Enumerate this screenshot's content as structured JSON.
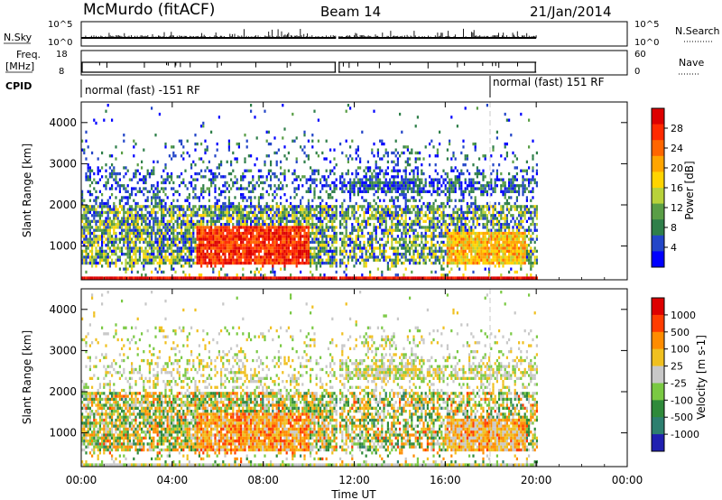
{
  "header": {
    "title": "McMurdo (fitACF)",
    "beam": "Beam 14",
    "date": "21/Jan/2014"
  },
  "strips": {
    "noise": {
      "left_label": "N.Sky",
      "right_label": "N.Search",
      "left_ticks": [
        "10^5",
        "10^0"
      ],
      "right_ticks": [
        "10^5",
        "10^0"
      ]
    },
    "freq": {
      "left_label": "Freq.",
      "left_unit": "[MHz]",
      "right_label": "Nave",
      "left_ticks": [
        "18",
        "8"
      ],
      "right_ticks": [
        "60",
        "0"
      ]
    },
    "cpid": {
      "label": "CPID",
      "segments": [
        "normal (fast) -151 RF",
        "normal (fast) 151 RF"
      ]
    }
  },
  "axes": {
    "xlabel": "Time UT",
    "xticks": [
      "00:00",
      "04:00",
      "08:00",
      "12:00",
      "16:00",
      "20:00",
      "00:00"
    ]
  },
  "panels": {
    "power": {
      "ylabel": "Slant Range [km]",
      "colorbar_label": "Power [dB]",
      "colorbar_ticks": [
        "28",
        "24",
        "20",
        "16",
        "12",
        "8",
        "4"
      ]
    },
    "velocity": {
      "ylabel": "Slant Range [km]",
      "colorbar_label": "Velocity [m s-1]",
      "colorbar_ticks": [
        "1000",
        "500",
        "100",
        "25",
        "-25",
        "-100",
        "-500",
        "-1000"
      ]
    }
  },
  "chart_data": [
    {
      "type": "heatmap",
      "name": "power",
      "x_axis": "Time UT",
      "x_range_hours": [
        0,
        24
      ],
      "y_range_km": [
        180,
        4500
      ],
      "y_ticks": [
        1000,
        2000,
        3000,
        4000
      ],
      "data_gap_hours": [
        11.2,
        11.3
      ],
      "data_end_hours": 20,
      "colorscale_range": [
        0,
        32
      ],
      "colors": [
        "#0000ff",
        "#2346c8",
        "#2f7f4a",
        "#5a9e46",
        "#b8d23a",
        "#ffd400",
        "#ffa500",
        "#ff6600",
        "#ff2a00",
        "#dd0000"
      ]
    },
    {
      "type": "heatmap",
      "name": "velocity",
      "x_axis": "Time UT",
      "x_range_hours": [
        0,
        24
      ],
      "y_range_km": [
        180,
        4500
      ],
      "y_ticks": [
        1000,
        2000,
        3000,
        4000
      ],
      "data_gap_hours": [
        11.2,
        11.3
      ],
      "data_end_hours": 20,
      "colors": [
        "#2020b0",
        "#2d7f6f",
        "#2f8a3a",
        "#7ac943",
        "#c8c8c8",
        "#f0c020",
        "#ff8c00",
        "#ff3c00",
        "#dd0000"
      ]
    }
  ]
}
